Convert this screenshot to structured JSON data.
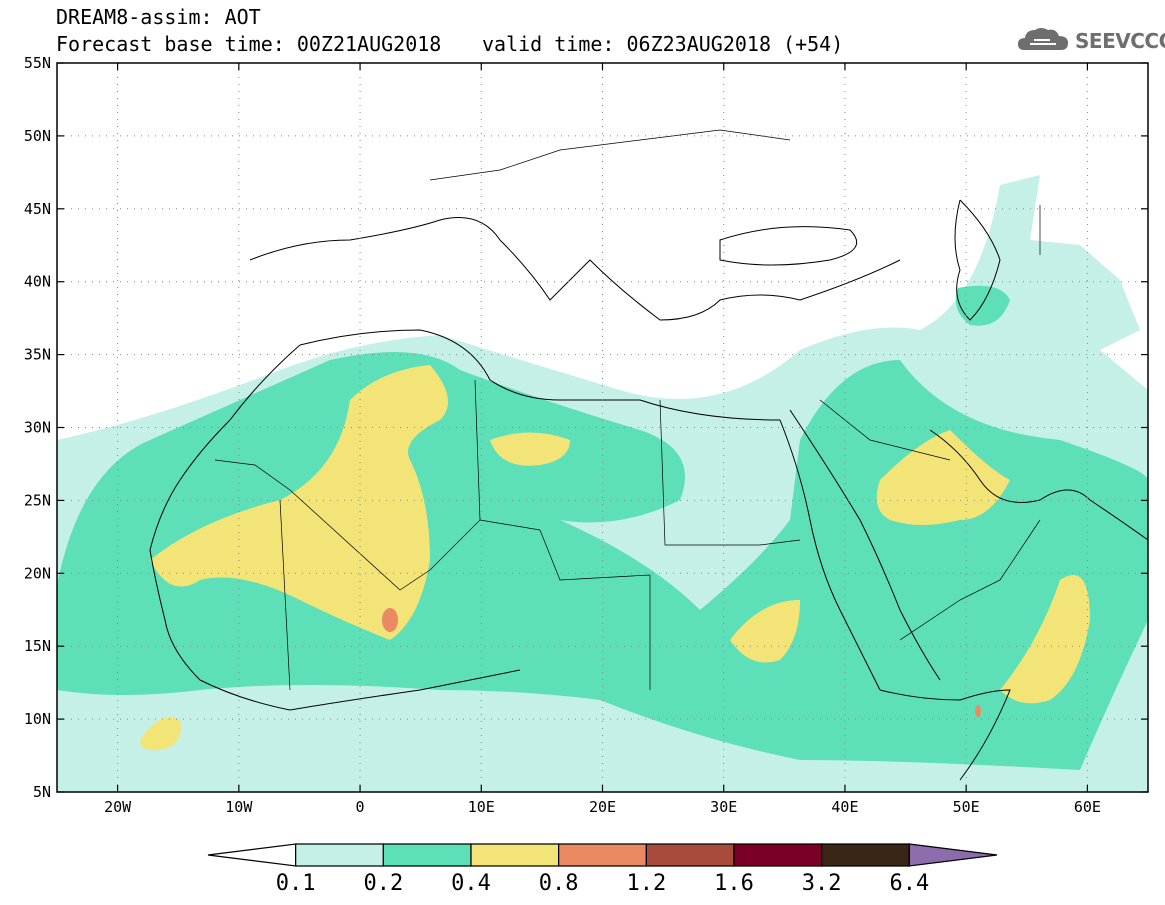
{
  "title": {
    "line1": "DREAM8-assim: AOT",
    "line2": "Forecast base time: 00Z21AUG2018",
    "valid": "valid time: 06Z23AUG2018 (+54)"
  },
  "logo": {
    "text": "SEEVCCC",
    "icon": "cloud-icon"
  },
  "map": {
    "projection": "lat-lon",
    "lon_range": [
      -25,
      65
    ],
    "lat_range": [
      5,
      55
    ],
    "lat_labels": [
      "55N",
      "50N",
      "45N",
      "40N",
      "35N",
      "30N",
      "25N",
      "20N",
      "15N",
      "10N",
      "5N"
    ],
    "lon_labels": [
      "20W",
      "10W",
      "0",
      "10E",
      "20E",
      "30E",
      "40E",
      "50E",
      "60E"
    ],
    "grid": "dotted"
  },
  "colorbar": {
    "labels": [
      "0.1",
      "0.2",
      "0.4",
      "0.8",
      "1.2",
      "1.6",
      "3.2",
      "6.4"
    ],
    "colors": [
      "#ffffff",
      "#c4f0e8",
      "#5ddfb8",
      "#f3e478",
      "#e98a62",
      "#a84a3c",
      "#7a0026",
      "#3a2616",
      "#8c6cac"
    ]
  }
}
